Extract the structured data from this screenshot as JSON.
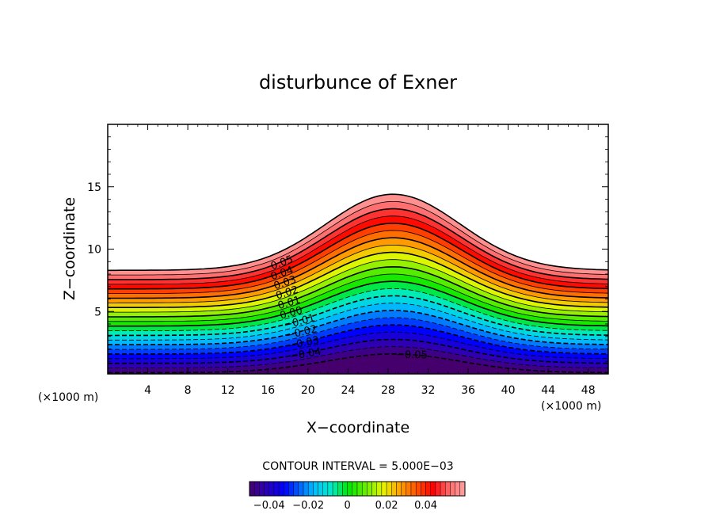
{
  "chart_data": {
    "type": "heatmap",
    "title": "disturbunce of Exner",
    "xlabel": "X−coordinate",
    "ylabel": "Z−coordinate",
    "x_unit_left": "(×1000 m)",
    "x_unit_right": "(×1000 m)",
    "xlim": [
      0,
      50
    ],
    "ylim": [
      0,
      20
    ],
    "x_ticks": [
      4,
      8,
      12,
      16,
      20,
      24,
      28,
      32,
      36,
      40,
      44,
      48
    ],
    "x_tick_labels": [
      "4",
      "8",
      "12",
      "16",
      "20",
      "24",
      "28",
      "32",
      "36",
      "40",
      "44",
      "48"
    ],
    "y_ticks": [
      5,
      10,
      15
    ],
    "y_tick_labels": [
      "5",
      "10",
      "15"
    ],
    "grid": false,
    "mountain": {
      "center_x": 28.5,
      "half_width": 9.5,
      "base_top_z": 8.3,
      "peak_top_z": 14.4,
      "base_bottom_z": 0.1,
      "peak_bottom_z": 1.6
    },
    "field": {
      "min": -0.05,
      "max": 0.06,
      "interval": 0.005
    },
    "contour_labels": [
      {
        "text": "0.05",
        "x": 16.3,
        "value": 0.05
      },
      {
        "text": "0.04",
        "x": 16.3,
        "value": 0.04
      },
      {
        "text": "0.03",
        "x": 16.6,
        "value": 0.03
      },
      {
        "text": "0.02",
        "x": 16.8,
        "value": 0.02
      },
      {
        "text": "0.01",
        "x": 17.0,
        "value": 0.01
      },
      {
        "text": "0.00",
        "x": 17.2,
        "value": 0.0
      },
      {
        "text": "−0.01",
        "x": 17.6,
        "value": -0.01
      },
      {
        "text": "−0.02",
        "x": 17.8,
        "value": -0.02
      },
      {
        "text": "−0.03",
        "x": 18.0,
        "value": -0.03
      },
      {
        "text": "−0.04",
        "x": 18.2,
        "value": -0.04
      },
      {
        "text": "−0.05",
        "x": 28.8,
        "value": -0.05
      }
    ],
    "contour_interval_text": "CONTOUR INTERVAL = 5.000E−03",
    "colorbar": {
      "range": [
        -0.05,
        0.06
      ],
      "ticks": [
        -0.04,
        -0.02,
        0,
        0.02,
        0.04
      ],
      "tick_labels": [
        "−0.04",
        "−0.02",
        "0",
        "0.02",
        "0.04"
      ]
    }
  }
}
